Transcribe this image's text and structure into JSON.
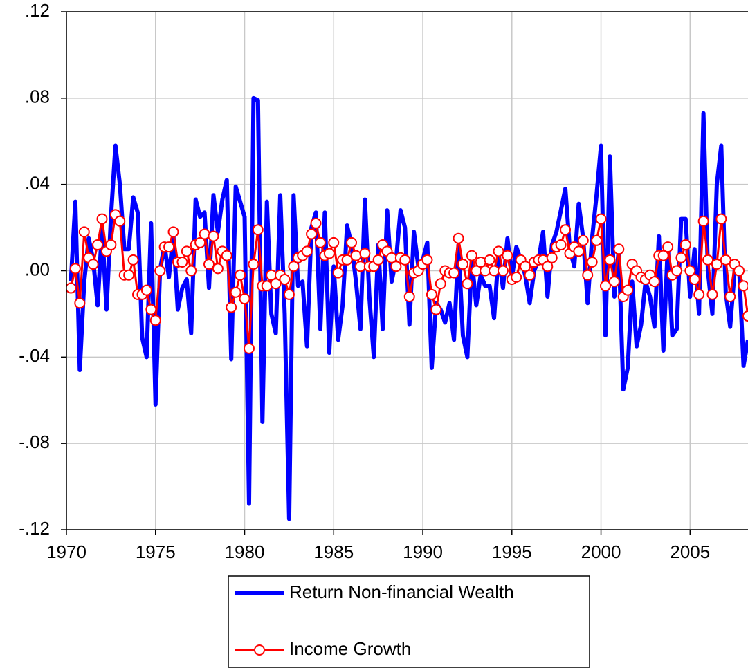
{
  "chart_data": {
    "type": "line",
    "x": [
      1970.25,
      1970.5,
      1970.75,
      1971,
      1971.25,
      1971.5,
      1971.75,
      1972,
      1972.25,
      1972.5,
      1972.75,
      1973,
      1973.25,
      1973.5,
      1973.75,
      1974,
      1974.25,
      1974.5,
      1974.75,
      1975,
      1975.25,
      1975.5,
      1975.75,
      1976,
      1976.25,
      1976.5,
      1976.75,
      1977,
      1977.25,
      1977.5,
      1977.75,
      1978,
      1978.25,
      1978.5,
      1978.75,
      1979,
      1979.25,
      1979.5,
      1979.75,
      1980,
      1980.25,
      1980.5,
      1980.75,
      1981,
      1981.25,
      1981.5,
      1981.75,
      1982,
      1982.25,
      1982.5,
      1982.75,
      1983,
      1983.25,
      1983.5,
      1983.75,
      1984,
      1984.25,
      1984.5,
      1984.75,
      1985,
      1985.25,
      1985.5,
      1985.75,
      1986,
      1986.25,
      1986.5,
      1986.75,
      1987,
      1987.25,
      1987.5,
      1987.75,
      1988,
      1988.25,
      1988.5,
      1988.75,
      1989,
      1989.25,
      1989.5,
      1989.75,
      1990,
      1990.25,
      1990.5,
      1990.75,
      1991,
      1991.25,
      1991.5,
      1991.75,
      1992,
      1992.25,
      1992.5,
      1992.75,
      1993,
      1993.25,
      1993.5,
      1993.75,
      1994,
      1994.25,
      1994.5,
      1994.75,
      1995,
      1995.25,
      1995.5,
      1995.75,
      1996,
      1996.25,
      1996.5,
      1996.75,
      1997,
      1997.25,
      1997.5,
      1997.75,
      1998,
      1998.25,
      1998.5,
      1998.75,
      1999,
      1999.25,
      1999.5,
      1999.75,
      2000,
      2000.25,
      2000.5,
      2000.75,
      2001,
      2001.25,
      2001.5,
      2001.75,
      2002,
      2002.25,
      2002.5,
      2002.75,
      2003,
      2003.25,
      2003.5,
      2003.75,
      2004,
      2004.25,
      2004.5,
      2004.75,
      2005,
      2005.25,
      2005.5,
      2005.75,
      2006,
      2006.25,
      2006.5,
      2006.75,
      2007,
      2007.25,
      2007.5,
      2007.75,
      2008,
      2008.25
    ],
    "series": [
      {
        "name": "Return Non-financial Wealth",
        "color": "#0000ff",
        "markers": false,
        "values": [
          -0.005,
          0.032,
          -0.046,
          -0.005,
          0.015,
          0.005,
          -0.016,
          0.02,
          -0.018,
          0.025,
          0.058,
          0.04,
          0.01,
          0.01,
          0.034,
          0.027,
          -0.031,
          -0.04,
          0.022,
          -0.062,
          0.0,
          0.012,
          -0.003,
          0.017,
          -0.018,
          -0.008,
          -0.004,
          -0.029,
          0.033,
          0.025,
          0.027,
          -0.008,
          0.035,
          0.018,
          0.033,
          0.042,
          -0.041,
          0.039,
          0.032,
          0.025,
          -0.108,
          0.08,
          0.079,
          -0.07,
          0.032,
          -0.02,
          -0.029,
          0.035,
          -0.02,
          -0.115,
          0.035,
          -0.007,
          -0.005,
          -0.035,
          0.02,
          0.027,
          -0.027,
          0.027,
          -0.038,
          0.002,
          -0.032,
          -0.016,
          0.021,
          0.012,
          -0.005,
          -0.027,
          0.033,
          -0.012,
          -0.04,
          0.012,
          -0.027,
          0.028,
          -0.005,
          0.005,
          0.028,
          0.02,
          -0.025,
          0.018,
          0.002,
          0.005,
          0.013,
          -0.045,
          -0.015,
          -0.018,
          -0.024,
          -0.015,
          -0.032,
          0.012,
          -0.03,
          -0.04,
          0.005,
          -0.016,
          -0.002,
          -0.007,
          -0.007,
          -0.022,
          0.008,
          -0.008,
          0.015,
          -0.003,
          0.011,
          0.005,
          -0.002,
          -0.015,
          0.0,
          0.005,
          0.018,
          -0.012,
          0.012,
          0.018,
          0.028,
          0.038,
          0.01,
          0.002,
          0.031,
          0.015,
          -0.015,
          0.015,
          0.035,
          0.058,
          -0.03,
          0.053,
          -0.012,
          0.01,
          -0.055,
          -0.045,
          -0.005,
          -0.035,
          -0.025,
          -0.005,
          -0.012,
          -0.026,
          0.016,
          -0.037,
          0.012,
          -0.03,
          -0.027,
          0.024,
          0.024,
          -0.012,
          0.01,
          -0.02,
          0.073,
          0.0,
          -0.02,
          0.04,
          0.058,
          -0.01,
          -0.026,
          0.0,
          0.002,
          -0.044,
          -0.032
        ]
      },
      {
        "name": "Income Growth",
        "color": "#ff0000",
        "markers": true,
        "values": [
          -0.008,
          0.001,
          -0.015,
          0.018,
          0.006,
          0.003,
          0.012,
          0.024,
          0.009,
          0.012,
          0.026,
          0.023,
          -0.002,
          -0.002,
          0.005,
          -0.011,
          -0.011,
          -0.009,
          -0.018,
          -0.023,
          0.0,
          0.011,
          0.011,
          0.018,
          0.004,
          0.004,
          0.009,
          0.0,
          0.012,
          0.013,
          0.017,
          0.003,
          0.016,
          0.001,
          0.009,
          0.007,
          -0.017,
          -0.01,
          -0.002,
          -0.013,
          -0.036,
          0.003,
          0.019,
          -0.007,
          -0.007,
          -0.002,
          -0.006,
          -0.002,
          -0.004,
          -0.011,
          0.002,
          0.006,
          0.007,
          0.009,
          0.017,
          0.022,
          0.013,
          0.007,
          0.008,
          0.013,
          -0.001,
          0.005,
          0.005,
          0.013,
          0.007,
          0.002,
          0.008,
          0.002,
          0.002,
          0.005,
          0.012,
          0.009,
          0.006,
          0.002,
          0.006,
          0.005,
          -0.012,
          -0.001,
          0.0,
          0.003,
          0.005,
          -0.011,
          -0.018,
          -0.006,
          0.0,
          -0.001,
          -0.001,
          0.015,
          0.003,
          -0.006,
          0.007,
          0.0,
          0.004,
          0.0,
          0.005,
          0.0,
          0.009,
          0.0,
          0.007,
          -0.004,
          -0.003,
          0.005,
          0.002,
          -0.002,
          0.004,
          0.005,
          0.005,
          0.002,
          0.006,
          0.011,
          0.012,
          0.019,
          0.008,
          0.011,
          0.009,
          0.014,
          -0.002,
          0.004,
          0.014,
          0.024,
          -0.007,
          0.005,
          -0.005,
          0.01,
          -0.012,
          -0.009,
          0.003,
          0.0,
          -0.003,
          -0.004,
          -0.002,
          -0.005,
          0.007,
          0.007,
          0.011,
          -0.002,
          0.0,
          0.006,
          0.012,
          0.0,
          -0.004,
          -0.011,
          0.023,
          0.005,
          -0.011,
          0.003,
          0.024,
          0.005,
          -0.012,
          0.003,
          0.0,
          -0.007,
          -0.021
        ]
      }
    ],
    "xlim": [
      1970,
      2008.25
    ],
    "xticks": [
      1970,
      1975,
      1980,
      1985,
      1990,
      1995,
      2000,
      2005
    ],
    "ylim": [
      -0.12,
      0.12
    ],
    "yticks": [
      {
        "value": -0.12,
        "label": "-.12"
      },
      {
        "value": -0.08,
        "label": "-.08"
      },
      {
        "value": -0.04,
        "label": "-.04"
      },
      {
        "value": 0,
        "label": ".00"
      },
      {
        "value": 0.04,
        "label": ".04"
      },
      {
        "value": 0.08,
        "label": ".08"
      },
      {
        "value": 0.12,
        "label": ".12"
      }
    ],
    "grid": true,
    "legend": "bottom"
  }
}
